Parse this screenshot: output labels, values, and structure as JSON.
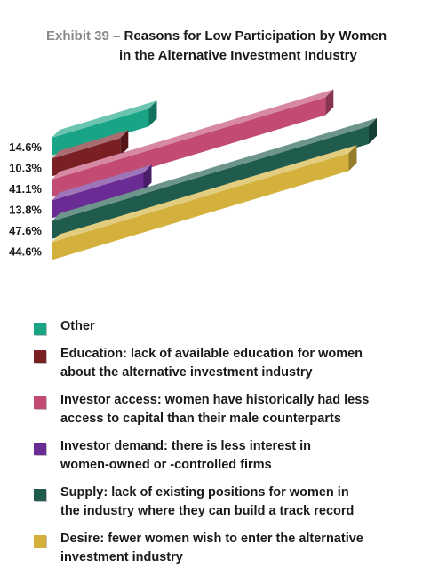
{
  "title": {
    "exhibit": "Exhibit 39",
    "text_line1": " – Reasons for Low Participation by Women",
    "text_line2": "in the Alternative Investment Industry"
  },
  "chart_data": {
    "type": "bar",
    "orientation": "horizontal",
    "style": "3d",
    "categories": [
      "Other",
      "Education",
      "Investor access",
      "Investor demand",
      "Supply",
      "Desire"
    ],
    "values": [
      14.6,
      10.3,
      41.1,
      13.8,
      47.6,
      44.6
    ],
    "data_labels": [
      "14.6%",
      "10.3%",
      "41.1%",
      "13.8%",
      "47.6%",
      "44.6%"
    ],
    "unit": "%",
    "xlim": [
      0,
      50
    ],
    "grid": false,
    "legend_position": "bottom",
    "legend": [
      {
        "label": "Other",
        "color": "#1aa486"
      },
      {
        "label": "Education: lack of available education for women\nabout the alternative investment industry",
        "color": "#7a1f24"
      },
      {
        "label": "Investor access: women have historically had less\naccess to capital than their male counterparts",
        "color": "#c24a73"
      },
      {
        "label": "Investor demand: there is less interest in\nwomen-owned or -controlled firms",
        "color": "#6a2b94"
      },
      {
        "label": "Supply: lack of existing positions for women in\nthe industry where they can build a track record",
        "color": "#1f5c4e"
      },
      {
        "label": "Desire: fewer women wish to enter the alternative\ninvestment industry",
        "color": "#d3b13c"
      }
    ]
  }
}
